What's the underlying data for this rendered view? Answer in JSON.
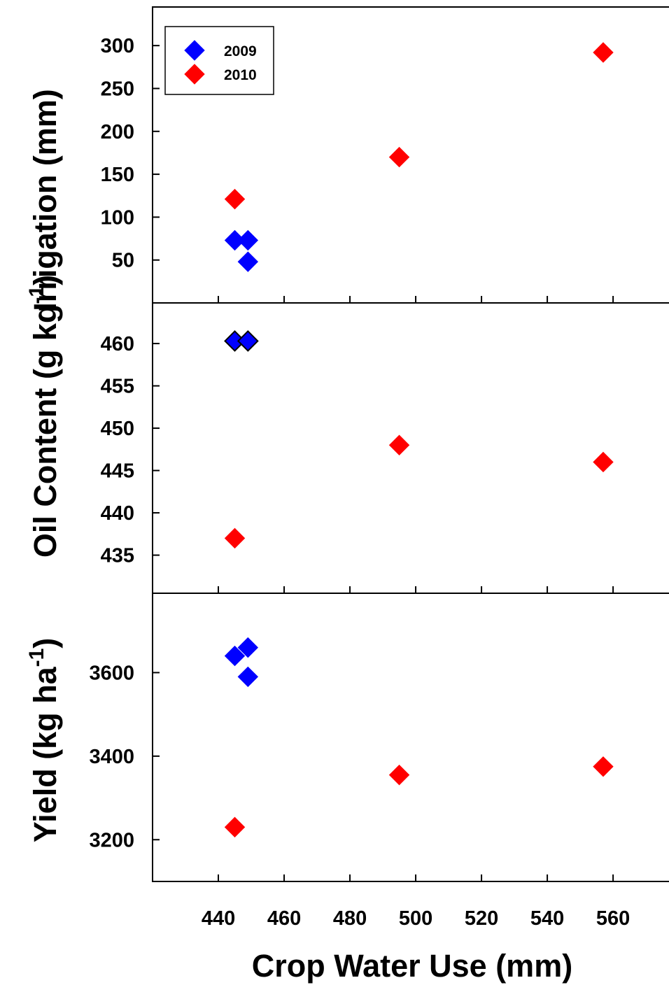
{
  "chart_data": [
    {
      "type": "scatter",
      "panel": "top",
      "ylabel_text": "Irrigation (mm)",
      "ylim": [
        0,
        345
      ],
      "yticks": [
        50,
        100,
        150,
        200,
        250,
        300
      ],
      "legend": {
        "placement": "top-left",
        "entries": [
          "2009",
          "2010"
        ]
      },
      "series": [
        {
          "name": "2009",
          "color": "#0000ff",
          "points": [
            [
              445,
              73
            ],
            [
              449,
              73
            ],
            [
              449,
              48
            ]
          ]
        },
        {
          "name": "2010",
          "color": "#ff0000",
          "points": [
            [
              445,
              121
            ],
            [
              495,
              170
            ],
            [
              557,
              292
            ]
          ]
        }
      ]
    },
    {
      "type": "scatter",
      "panel": "middle",
      "ylabel_text": "Oil Content (g kg",
      "ylabel_sup": "-1",
      "ylabel_tail": ")",
      "ylim": [
        430.5,
        464.8
      ],
      "yticks": [
        435,
        440,
        445,
        450,
        455,
        460
      ],
      "series": [
        {
          "name": "2009",
          "color": "#0000ff",
          "outlined": true,
          "points": [
            [
              445,
              460.3
            ],
            [
              449,
              460.3
            ]
          ]
        },
        {
          "name": "2010",
          "color": "#ff0000",
          "points": [
            [
              445,
              437
            ],
            [
              495,
              448
            ],
            [
              557,
              446
            ]
          ]
        }
      ]
    },
    {
      "type": "scatter",
      "panel": "bottom",
      "ylabel_text": "Yield (kg ha",
      "ylabel_sup": "-1",
      "ylabel_tail": ")",
      "ylim": [
        3100,
        3790
      ],
      "yticks": [
        3200,
        3400,
        3600
      ],
      "series": [
        {
          "name": "2009",
          "color": "#0000ff",
          "points": [
            [
              445,
              3640
            ],
            [
              449,
              3660
            ],
            [
              449,
              3590
            ]
          ]
        },
        {
          "name": "2010",
          "color": "#ff0000",
          "points": [
            [
              445,
              3230
            ],
            [
              495,
              3355
            ],
            [
              557,
              3375
            ]
          ]
        }
      ]
    }
  ],
  "x_axis": {
    "label": "Crop Water Use (mm)",
    "xlim": [
      420,
      577
    ],
    "ticks": [
      440,
      460,
      480,
      500,
      520,
      540,
      560
    ]
  }
}
